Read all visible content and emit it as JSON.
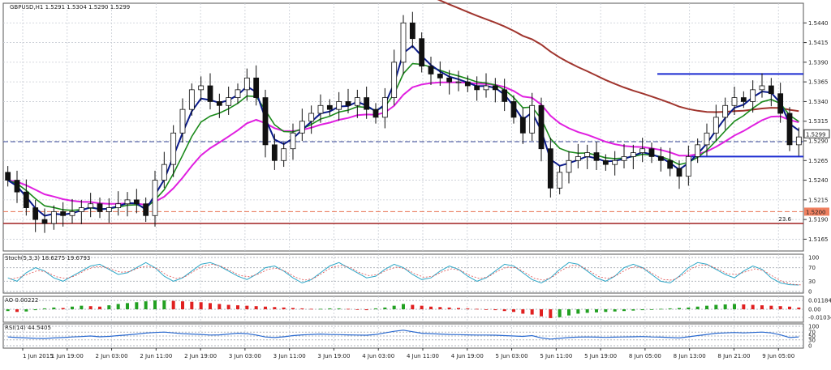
{
  "chart_data": {
    "type": "candlestick",
    "symbol_header": "GBPUSD,H1  1.5291 1.5304 1.5290 1.5299",
    "current_price_label": "1.5299",
    "support_label": "1.5200",
    "fib_label": "23.6",
    "y_ticks": [
      "1.5440",
      "1.5415",
      "1.5390",
      "1.5365",
      "1.5340",
      "1.5315",
      "1.5290",
      "1.5265",
      "1.5240",
      "1.5215",
      "1.5190",
      "1.5165"
    ],
    "y_values": [
      1.544,
      1.5415,
      1.539,
      1.5365,
      1.534,
      1.5315,
      1.529,
      1.5265,
      1.524,
      1.5215,
      1.519,
      1.5165
    ],
    "ylim": [
      1.515,
      1.5465
    ],
    "x_ticks": [
      "1 Jun 2015",
      "1 Jun 19:00",
      "2 Jun 03:00",
      "2 Jun 11:00",
      "2 Jun 19:00",
      "3 Jun 03:00",
      "3 Jun 11:00",
      "3 Jun 19:00",
      "4 Jun 03:00",
      "4 Jun 11:00",
      "4 Jun 19:00",
      "5 Jun 03:00",
      "5 Jun 11:00",
      "5 Jun 19:00",
      "8 Jun 05:00",
      "8 Jun 13:00",
      "8 Jun 21:00",
      "9 Jun 05:00"
    ],
    "horizontal_lines": {
      "resistance": 1.5375,
      "support_short": 1.527,
      "dashed_blue": 1.5289,
      "dashed_orange": 1.52,
      "fib_red": 1.5185
    },
    "close_path": [
      1.524,
      1.5225,
      1.5205,
      1.519,
      1.5185,
      1.52,
      1.5195,
      1.52,
      1.5205,
      1.521,
      1.52,
      1.5205,
      1.521,
      1.5215,
      1.521,
      1.5195,
      1.524,
      1.526,
      1.53,
      1.533,
      1.5355,
      1.536,
      1.534,
      1.5335,
      1.5345,
      1.5355,
      1.537,
      1.5345,
      1.5285,
      1.5265,
      1.528,
      1.53,
      1.5315,
      1.5325,
      1.5335,
      1.533,
      1.534,
      1.5335,
      1.5345,
      1.533,
      1.532,
      1.5345,
      1.539,
      1.544,
      1.542,
      1.5385,
      1.5375,
      1.537,
      1.5365,
      1.5365,
      1.536,
      1.5355,
      1.536,
      1.5355,
      1.534,
      1.532,
      1.53,
      1.5335,
      1.528,
      1.523,
      1.525,
      1.5265,
      1.527,
      1.5275,
      1.5265,
      1.526,
      1.5265,
      1.527,
      1.5275,
      1.528,
      1.527,
      1.5265,
      1.5255,
      1.5245,
      1.527,
      1.5285,
      1.53,
      1.532,
      1.5335,
      1.5345,
      1.534,
      1.5355,
      1.536,
      1.535,
      1.5325,
      1.5285,
      1.5295
    ],
    "stoch": {
      "label": "Stoch(5,3,3) 18.6275 19.6793",
      "levels": [
        "100",
        "70",
        "30",
        "0"
      ],
      "values": [
        40,
        30,
        55,
        70,
        60,
        40,
        30,
        45,
        60,
        75,
        80,
        65,
        50,
        55,
        70,
        85,
        70,
        45,
        30,
        40,
        60,
        80,
        85,
        75,
        60,
        45,
        35,
        50,
        70,
        75,
        60,
        40,
        25,
        35,
        55,
        75,
        85,
        70,
        55,
        40,
        45,
        65,
        80,
        70,
        50,
        35,
        40,
        60,
        75,
        65,
        45,
        30,
        40,
        60,
        80,
        75,
        55,
        35,
        25,
        40,
        65,
        85,
        80,
        60,
        40,
        30,
        45,
        70,
        80,
        70,
        50,
        30,
        25,
        45,
        70,
        85,
        80,
        65,
        50,
        40,
        60,
        75,
        65,
        40,
        25,
        20,
        19
      ]
    },
    "ao": {
      "label": "AO 0.00222",
      "levels": [
        "0.01184",
        "0.00",
        "-0.01034"
      ],
      "values": [
        -0.2,
        -0.3,
        -0.25,
        -0.1,
        0.1,
        0.2,
        0.15,
        0.3,
        0.4,
        0.35,
        0.3,
        0.45,
        0.6,
        0.7,
        0.8,
        0.9,
        1.0,
        1.0,
        0.95,
        0.9,
        0.85,
        0.8,
        0.7,
        0.6,
        0.5,
        0.45,
        0.4,
        0.35,
        0.3,
        0.25,
        0.2,
        0.15,
        0.1,
        0.05,
        0.05,
        0.1,
        0.1,
        0.05,
        -0.05,
        -0.1,
        0.1,
        0.2,
        0.4,
        0.6,
        0.5,
        0.4,
        0.3,
        0.25,
        0.2,
        0.15,
        0.1,
        0.05,
        0.0,
        -0.1,
        -0.2,
        -0.3,
        -0.5,
        -0.6,
        -0.8,
        -1.0,
        -0.9,
        -0.7,
        -0.5,
        -0.4,
        -0.35,
        -0.3,
        -0.25,
        -0.2,
        -0.15,
        -0.1,
        -0.05,
        0.05,
        0.1,
        0.15,
        0.2,
        0.3,
        0.4,
        0.5,
        0.55,
        0.6,
        0.55,
        0.5,
        0.45,
        0.4,
        0.35,
        0.3,
        0.2
      ]
    },
    "rsi": {
      "label": "RSI(14) 44.5405",
      "levels": [
        "100",
        "70",
        "50",
        "30",
        "0"
      ],
      "values": [
        45,
        42,
        40,
        38,
        37,
        40,
        42,
        45,
        47,
        50,
        46,
        48,
        52,
        56,
        60,
        65,
        68,
        70,
        66,
        62,
        60,
        58,
        55,
        56,
        60,
        64,
        62,
        55,
        45,
        42,
        46,
        52,
        56,
        58,
        60,
        58,
        57,
        56,
        55,
        54,
        58,
        66,
        74,
        80,
        72,
        64,
        62,
        60,
        58,
        57,
        56,
        55,
        55,
        54,
        52,
        50,
        48,
        52,
        40,
        34,
        38,
        42,
        44,
        45,
        44,
        43,
        44,
        45,
        46,
        47,
        45,
        44,
        42,
        40,
        46,
        52,
        58,
        64,
        66,
        68,
        66,
        68,
        70,
        66,
        56,
        42,
        45
      ]
    }
  }
}
